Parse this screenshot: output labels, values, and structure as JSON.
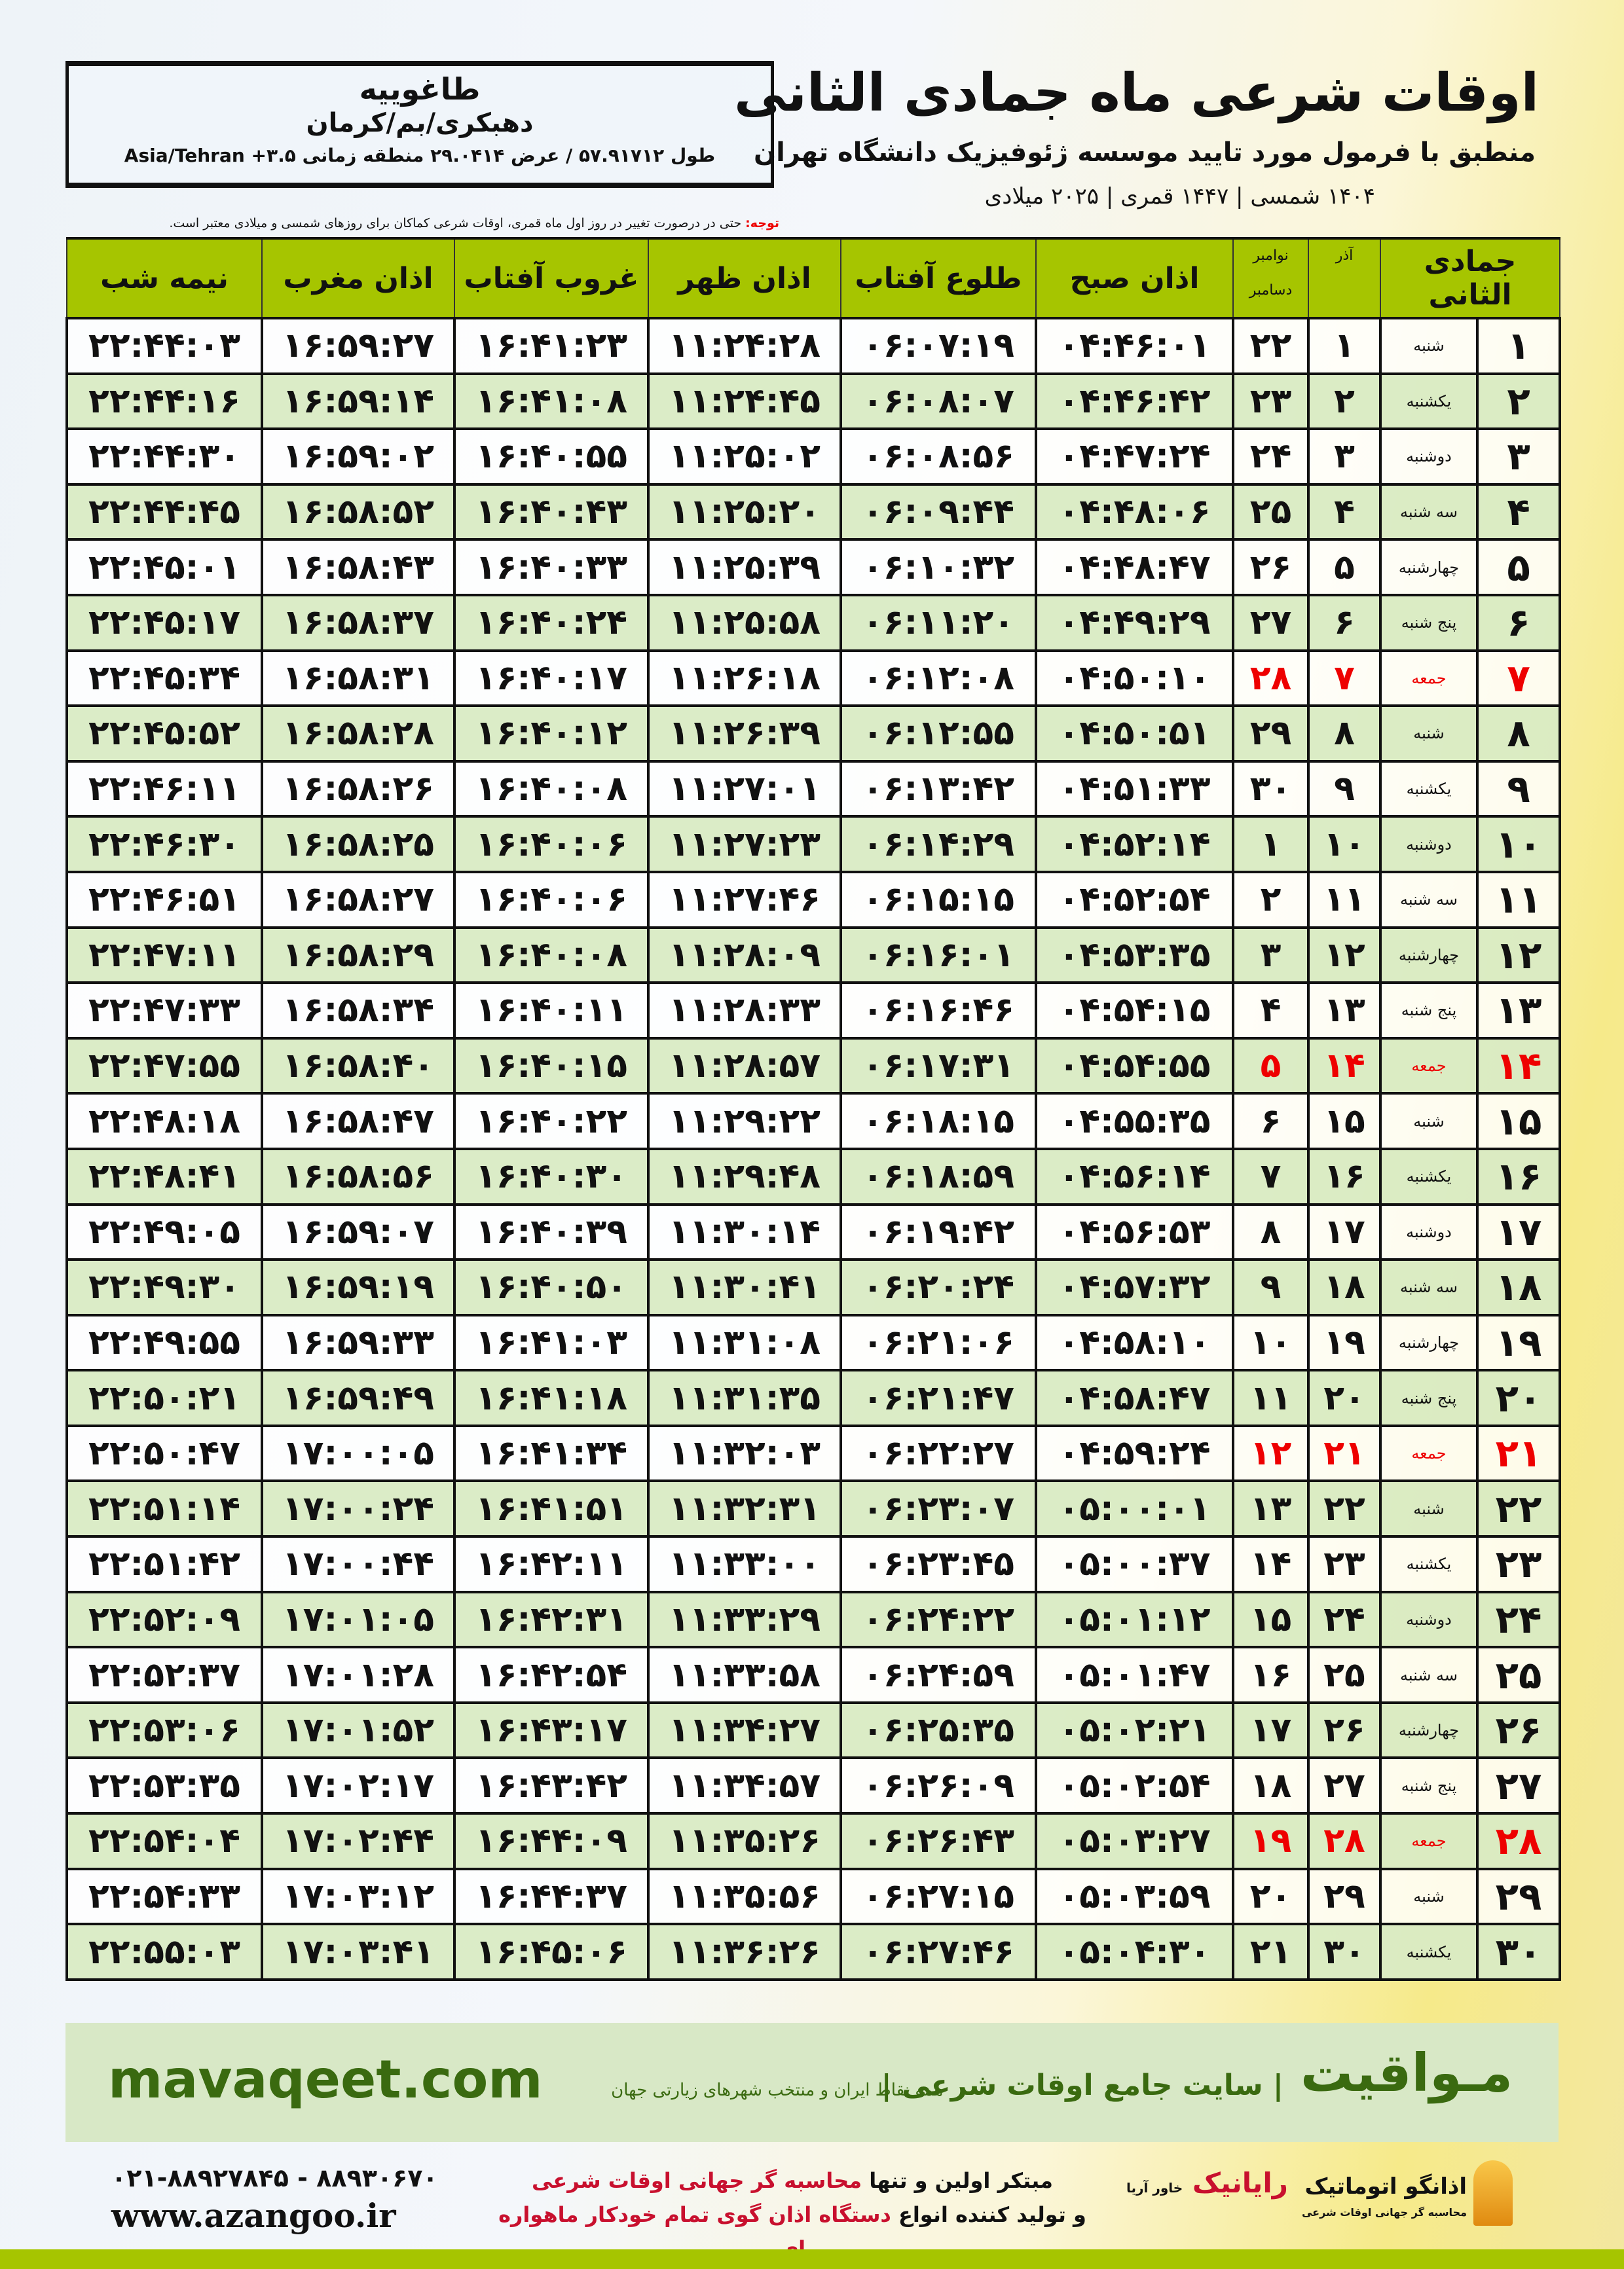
{
  "header": {
    "title": "اوقات شرعی ماه جمادی الثانی",
    "subtitle": "منطبق با فرمول مورد تایید موسسه ژئوفیزیک دانشگاه تهران",
    "years": "۱۴۰۴ شمسی | ۱۴۴۷ قمری | ۲۰۲۵ میلادی"
  },
  "location": {
    "name": "طاغوییه",
    "path": "دهبکری/بم/کرمان",
    "coords": "طول ۵۷.۹۱۷۱۲ / عرض ۲۹.۰۴۱۴ منطقه زمانی Asia/Tehran +۳.۵"
  },
  "note": {
    "label": "توجه:",
    "text": " حتی در درصورت تغییر در روز اول ماه قمری، اوقات شرعی کماکان برای روزهای شمسی و میلادی معتبر است."
  },
  "columns": {
    "hijri": "جمادی الثانی",
    "azar": "آذر",
    "nov": "نوامبر",
    "dec": "دسامبر",
    "fajr": "اذان صبح",
    "sunrise": "طلوع آفتاب",
    "dhuhr": "اذان ظهر",
    "sunset": "غروب آفتاب",
    "maghrib": "اذان مغرب",
    "midnight": "نیمه شب"
  },
  "colors": {
    "header_green": "#a6c500",
    "row_green": "#d9ebc6",
    "friday_red": "#e00000",
    "brand_green": "#3a6a10"
  },
  "rows": [
    [
      "۱",
      "شنبه",
      "۱",
      "۲۲",
      "۰۴:۴۶:۰۱",
      "۰۶:۰۷:۱۹",
      "۱۱:۲۴:۲۸",
      "۱۶:۴۱:۲۳",
      "۱۶:۵۹:۲۷",
      "۲۲:۴۴:۰۳"
    ],
    [
      "۲",
      "یکشنبه",
      "۲",
      "۲۳",
      "۰۴:۴۶:۴۲",
      "۰۶:۰۸:۰۷",
      "۱۱:۲۴:۴۵",
      "۱۶:۴۱:۰۸",
      "۱۶:۵۹:۱۴",
      "۲۲:۴۴:۱۶"
    ],
    [
      "۳",
      "دوشنبه",
      "۳",
      "۲۴",
      "۰۴:۴۷:۲۴",
      "۰۶:۰۸:۵۶",
      "۱۱:۲۵:۰۲",
      "۱۶:۴۰:۵۵",
      "۱۶:۵۹:۰۲",
      "۲۲:۴۴:۳۰"
    ],
    [
      "۴",
      "سه شنبه",
      "۴",
      "۲۵",
      "۰۴:۴۸:۰۶",
      "۰۶:۰۹:۴۴",
      "۱۱:۲۵:۲۰",
      "۱۶:۴۰:۴۳",
      "۱۶:۵۸:۵۲",
      "۲۲:۴۴:۴۵"
    ],
    [
      "۵",
      "چهارشنبه",
      "۵",
      "۲۶",
      "۰۴:۴۸:۴۷",
      "۰۶:۱۰:۳۲",
      "۱۱:۲۵:۳۹",
      "۱۶:۴۰:۳۳",
      "۱۶:۵۸:۴۳",
      "۲۲:۴۵:۰۱"
    ],
    [
      "۶",
      "پنج شنبه",
      "۶",
      "۲۷",
      "۰۴:۴۹:۲۹",
      "۰۶:۱۱:۲۰",
      "۱۱:۲۵:۵۸",
      "۱۶:۴۰:۲۴",
      "۱۶:۵۸:۳۷",
      "۲۲:۴۵:۱۷"
    ],
    [
      "۷",
      "جمعه",
      "۷",
      "۲۸",
      "۰۴:۵۰:۱۰",
      "۰۶:۱۲:۰۸",
      "۱۱:۲۶:۱۸",
      "۱۶:۴۰:۱۷",
      "۱۶:۵۸:۳۱",
      "۲۲:۴۵:۳۴"
    ],
    [
      "۸",
      "شنبه",
      "۸",
      "۲۹",
      "۰۴:۵۰:۵۱",
      "۰۶:۱۲:۵۵",
      "۱۱:۲۶:۳۹",
      "۱۶:۴۰:۱۲",
      "۱۶:۵۸:۲۸",
      "۲۲:۴۵:۵۲"
    ],
    [
      "۹",
      "یکشنبه",
      "۹",
      "۳۰",
      "۰۴:۵۱:۳۳",
      "۰۶:۱۳:۴۲",
      "۱۱:۲۷:۰۱",
      "۱۶:۴۰:۰۸",
      "۱۶:۵۸:۲۶",
      "۲۲:۴۶:۱۱"
    ],
    [
      "۱۰",
      "دوشنبه",
      "۱۰",
      "۱",
      "۰۴:۵۲:۱۴",
      "۰۶:۱۴:۲۹",
      "۱۱:۲۷:۲۳",
      "۱۶:۴۰:۰۶",
      "۱۶:۵۸:۲۵",
      "۲۲:۴۶:۳۰"
    ],
    [
      "۱۱",
      "سه شنبه",
      "۱۱",
      "۲",
      "۰۴:۵۲:۵۴",
      "۰۶:۱۵:۱۵",
      "۱۱:۲۷:۴۶",
      "۱۶:۴۰:۰۶",
      "۱۶:۵۸:۲۷",
      "۲۲:۴۶:۵۱"
    ],
    [
      "۱۲",
      "چهارشنبه",
      "۱۲",
      "۳",
      "۰۴:۵۳:۳۵",
      "۰۶:۱۶:۰۱",
      "۱۱:۲۸:۰۹",
      "۱۶:۴۰:۰۸",
      "۱۶:۵۸:۲۹",
      "۲۲:۴۷:۱۱"
    ],
    [
      "۱۳",
      "پنج شنبه",
      "۱۳",
      "۴",
      "۰۴:۵۴:۱۵",
      "۰۶:۱۶:۴۶",
      "۱۱:۲۸:۳۳",
      "۱۶:۴۰:۱۱",
      "۱۶:۵۸:۳۴",
      "۲۲:۴۷:۳۳"
    ],
    [
      "۱۴",
      "جمعه",
      "۱۴",
      "۵",
      "۰۴:۵۴:۵۵",
      "۰۶:۱۷:۳۱",
      "۱۱:۲۸:۵۷",
      "۱۶:۴۰:۱۵",
      "۱۶:۵۸:۴۰",
      "۲۲:۴۷:۵۵"
    ],
    [
      "۱۵",
      "شنبه",
      "۱۵",
      "۶",
      "۰۴:۵۵:۳۵",
      "۰۶:۱۸:۱۵",
      "۱۱:۲۹:۲۲",
      "۱۶:۴۰:۲۲",
      "۱۶:۵۸:۴۷",
      "۲۲:۴۸:۱۸"
    ],
    [
      "۱۶",
      "یکشنبه",
      "۱۶",
      "۷",
      "۰۴:۵۶:۱۴",
      "۰۶:۱۸:۵۹",
      "۱۱:۲۹:۴۸",
      "۱۶:۴۰:۳۰",
      "۱۶:۵۸:۵۶",
      "۲۲:۴۸:۴۱"
    ],
    [
      "۱۷",
      "دوشنبه",
      "۱۷",
      "۸",
      "۰۴:۵۶:۵۳",
      "۰۶:۱۹:۴۲",
      "۱۱:۳۰:۱۴",
      "۱۶:۴۰:۳۹",
      "۱۶:۵۹:۰۷",
      "۲۲:۴۹:۰۵"
    ],
    [
      "۱۸",
      "سه شنبه",
      "۱۸",
      "۹",
      "۰۴:۵۷:۳۲",
      "۰۶:۲۰:۲۴",
      "۱۱:۳۰:۴۱",
      "۱۶:۴۰:۵۰",
      "۱۶:۵۹:۱۹",
      "۲۲:۴۹:۳۰"
    ],
    [
      "۱۹",
      "چهارشنبه",
      "۱۹",
      "۱۰",
      "۰۴:۵۸:۱۰",
      "۰۶:۲۱:۰۶",
      "۱۱:۳۱:۰۸",
      "۱۶:۴۱:۰۳",
      "۱۶:۵۹:۳۳",
      "۲۲:۴۹:۵۵"
    ],
    [
      "۲۰",
      "پنج شنبه",
      "۲۰",
      "۱۱",
      "۰۴:۵۸:۴۷",
      "۰۶:۲۱:۴۷",
      "۱۱:۳۱:۳۵",
      "۱۶:۴۱:۱۸",
      "۱۶:۵۹:۴۹",
      "۲۲:۵۰:۲۱"
    ],
    [
      "۲۱",
      "جمعه",
      "۲۱",
      "۱۲",
      "۰۴:۵۹:۲۴",
      "۰۶:۲۲:۲۷",
      "۱۱:۳۲:۰۳",
      "۱۶:۴۱:۳۴",
      "۱۷:۰۰:۰۵",
      "۲۲:۵۰:۴۷"
    ],
    [
      "۲۲",
      "شنبه",
      "۲۲",
      "۱۳",
      "۰۵:۰۰:۰۱",
      "۰۶:۲۳:۰۷",
      "۱۱:۳۲:۳۱",
      "۱۶:۴۱:۵۱",
      "۱۷:۰۰:۲۴",
      "۲۲:۵۱:۱۴"
    ],
    [
      "۲۳",
      "یکشنبه",
      "۲۳",
      "۱۴",
      "۰۵:۰۰:۳۷",
      "۰۶:۲۳:۴۵",
      "۱۱:۳۳:۰۰",
      "۱۶:۴۲:۱۱",
      "۱۷:۰۰:۴۴",
      "۲۲:۵۱:۴۲"
    ],
    [
      "۲۴",
      "دوشنبه",
      "۲۴",
      "۱۵",
      "۰۵:۰۱:۱۲",
      "۰۶:۲۴:۲۲",
      "۱۱:۳۳:۲۹",
      "۱۶:۴۲:۳۱",
      "۱۷:۰۱:۰۵",
      "۲۲:۵۲:۰۹"
    ],
    [
      "۲۵",
      "سه شنبه",
      "۲۵",
      "۱۶",
      "۰۵:۰۱:۴۷",
      "۰۶:۲۴:۵۹",
      "۱۱:۳۳:۵۸",
      "۱۶:۴۲:۵۴",
      "۱۷:۰۱:۲۸",
      "۲۲:۵۲:۳۷"
    ],
    [
      "۲۶",
      "چهارشنبه",
      "۲۶",
      "۱۷",
      "۰۵:۰۲:۲۱",
      "۰۶:۲۵:۳۵",
      "۱۱:۳۴:۲۷",
      "۱۶:۴۳:۱۷",
      "۱۷:۰۱:۵۲",
      "۲۲:۵۳:۰۶"
    ],
    [
      "۲۷",
      "پنج شنبه",
      "۲۷",
      "۱۸",
      "۰۵:۰۲:۵۴",
      "۰۶:۲۶:۰۹",
      "۱۱:۳۴:۵۷",
      "۱۶:۴۳:۴۲",
      "۱۷:۰۲:۱۷",
      "۲۲:۵۳:۳۵"
    ],
    [
      "۲۸",
      "جمعه",
      "۲۸",
      "۱۹",
      "۰۵:۰۳:۲۷",
      "۰۶:۲۶:۴۳",
      "۱۱:۳۵:۲۶",
      "۱۶:۴۴:۰۹",
      "۱۷:۰۲:۴۴",
      "۲۲:۵۴:۰۴"
    ],
    [
      "۲۹",
      "شنبه",
      "۲۹",
      "۲۰",
      "۰۵:۰۳:۵۹",
      "۰۶:۲۷:۱۵",
      "۱۱:۳۵:۵۶",
      "۱۶:۴۴:۳۷",
      "۱۷:۰۳:۱۲",
      "۲۲:۵۴:۳۳"
    ],
    [
      "۳۰",
      "یکشنبه",
      "۳۰",
      "۲۱",
      "۰۵:۰۴:۳۰",
      "۰۶:۲۷:۴۶",
      "۱۱:۳۶:۲۶",
      "۱۶:۴۵:۰۶",
      "۱۷:۰۳:۴۱",
      "۲۲:۵۵:۰۳"
    ]
  ],
  "friday_label": "جمعه",
  "footer": {
    "brand": "مـواقیت",
    "brand_sub": "| سایت جامع اوقات شرعی |",
    "brand_sub2": "همه نقاط ایران و منتخب شهرهای زیارتی جهان",
    "site": "mavaqeet.com",
    "promo_1a": "مبتکر اولین و تنها ",
    "promo_1b": "محاسبه گر جهانی اوقات شرعی",
    "promo_2a": "و تولید کننده انواع ",
    "promo_2b": "دستگاه اذان گوی تمام خودکار ماهواره ای",
    "phone": "۰۲۱-۸۸۹۲۷۸۴۵ - ۸۸۹۳۰۶۷۰",
    "web": "www.azangoo.ir",
    "logo_rayanik": "رایانیک",
    "logo_rayanik_sub": "خاور آریا",
    "logo_azangoo": "اذانگو اتوماتیک",
    "logo_azangoo_sub": "محاسبه گر جهانی اوقات شرعی"
  }
}
